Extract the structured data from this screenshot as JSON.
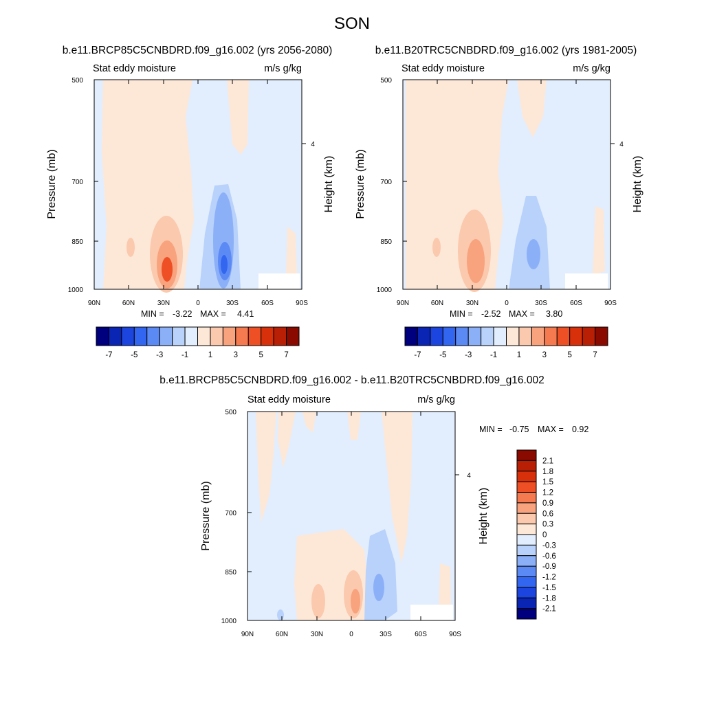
{
  "title": "SON",
  "common": {
    "subtitle_left": "Stat eddy moisture",
    "subtitle_right": "m/s g/kg",
    "ylabel": "Pressure (mb)",
    "y2label": "Height (km)",
    "x_ticks": [
      "90N",
      "60N",
      "30N",
      "0",
      "30S",
      "60S",
      "90S"
    ],
    "y_ticks": [
      "500",
      "700",
      "850",
      "1000"
    ],
    "y_tick_values": [
      500,
      700,
      850,
      1000
    ],
    "y2_tick": "4"
  },
  "panels": [
    {
      "id": "future",
      "case_title": "b.e11.BRCP85C5CNBDRD.f09_g16.002 (yrs 2056-2080)",
      "min_label": "MIN =",
      "min_value": "-3.22",
      "max_label": "MAX =",
      "max_value": "4.41"
    },
    {
      "id": "historical",
      "case_title": "b.e11.B20TRC5CNBDRD.f09_g16.002 (yrs 1981-2005)",
      "min_label": "MIN =",
      "min_value": "-2.52",
      "max_label": "MAX =",
      "max_value": "3.80"
    },
    {
      "id": "difference",
      "case_title": "b.e11.BRCP85C5CNBDRD.f09_g16.002 - b.e11.B20TRC5CNBDRD.f09_g16.002",
      "min_label": "MIN =",
      "min_value": "-0.75",
      "max_label": "MAX =",
      "max_value": "0.92"
    }
  ],
  "colorbar_main": {
    "colors": [
      "#00007f",
      "#0a24b4",
      "#1c45e0",
      "#3366f0",
      "#5c8af5",
      "#8cb0f8",
      "#b9d2fb",
      "#e2eefd",
      "#fde8d8",
      "#fbc9ad",
      "#f9a27e",
      "#f57a50",
      "#ee4f25",
      "#d9300c",
      "#b81f05",
      "#8a0a00"
    ],
    "labels": [
      "-7",
      "-5",
      "-3",
      "-1",
      "1",
      "3",
      "5",
      "7"
    ]
  },
  "colorbar_diff": {
    "colors": [
      "#00007f",
      "#0a24b4",
      "#1c45e0",
      "#3366f0",
      "#5c8af5",
      "#8cb0f8",
      "#b9d2fb",
      "#e2eefd",
      "#fde8d8",
      "#fbc9ad",
      "#f9a27e",
      "#f57a50",
      "#ee4f25",
      "#d9300c",
      "#b81f05",
      "#8a0a00"
    ],
    "labels": [
      "-2.1",
      "-1.8",
      "-1.5",
      "-1.2",
      "-0.9",
      "-0.6",
      "-0.3",
      "0",
      "0.3",
      "0.6",
      "0.9",
      "1.2",
      "1.5",
      "1.8",
      "2.1"
    ]
  },
  "chart_data": [
    {
      "type": "heatmap",
      "title": "b.e11.BRCP85C5CNBDRD.f09_g16.002 (yrs 2056-2080)",
      "variable": "Stat eddy moisture",
      "units": "m/s g/kg",
      "xlabel": "",
      "ylabel": "Pressure (mb)",
      "y2label": "Height (km)",
      "x_range": [
        "90N",
        "90S"
      ],
      "ylim": [
        500,
        1000
      ],
      "min": -3.22,
      "max": 4.41,
      "features": [
        {
          "location": "30N",
          "pressure": 920,
          "value": 4.0
        },
        {
          "location": "25S",
          "pressure": 900,
          "value": -3.0
        }
      ]
    },
    {
      "type": "heatmap",
      "title": "b.e11.B20TRC5CNBDRD.f09_g16.002 (yrs 1981-2005)",
      "variable": "Stat eddy moisture",
      "units": "m/s g/kg",
      "xlabel": "",
      "ylabel": "Pressure (mb)",
      "y2label": "Height (km)",
      "x_range": [
        "90N",
        "90S"
      ],
      "ylim": [
        500,
        1000
      ],
      "min": -2.52,
      "max": 3.8,
      "features": [
        {
          "location": "30N",
          "pressure": 910,
          "value": 3.5
        },
        {
          "location": "25S",
          "pressure": 860,
          "value": -2.3
        }
      ]
    },
    {
      "type": "heatmap",
      "title": "b.e11.BRCP85C5CNBDRD.f09_g16.002 - b.e11.B20TRC5CNBDRD.f09_g16.002",
      "variable": "Stat eddy moisture",
      "units": "m/s g/kg",
      "xlabel": "",
      "ylabel": "Pressure (mb)",
      "y2label": "Height (km)",
      "x_range": [
        "90N",
        "90S"
      ],
      "ylim": [
        500,
        1000
      ],
      "min": -0.75,
      "max": 0.92,
      "features": [
        {
          "location": "30N",
          "pressure": 930,
          "value": 0.7
        },
        {
          "location": "0",
          "pressure": 920,
          "value": 0.9
        },
        {
          "location": "25S",
          "pressure": 890,
          "value": -0.7
        }
      ]
    }
  ]
}
